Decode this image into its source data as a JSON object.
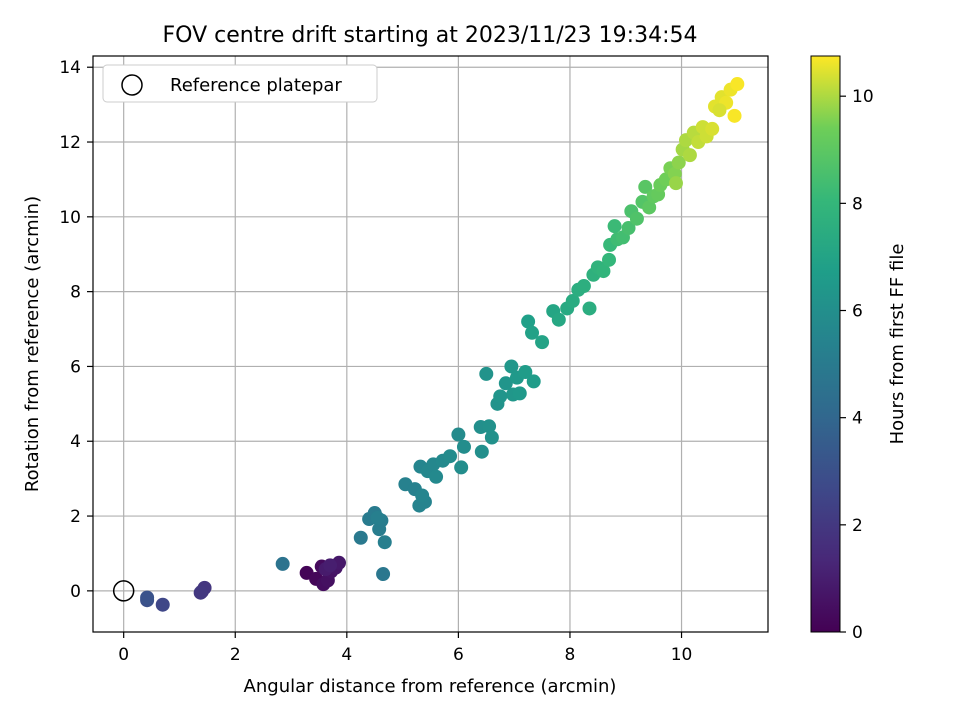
{
  "chart_data": {
    "type": "scatter",
    "title": "FOV centre drift starting at 2023/11/23 19:34:54",
    "xlabel": "Angular distance from reference (arcmin)",
    "ylabel": "Rotation from reference (arcmin)",
    "xlim": [
      -0.55,
      11.55
    ],
    "ylim": [
      -1.1,
      14.3
    ],
    "xticks": [
      0,
      2,
      4,
      6,
      8,
      10
    ],
    "yticks": [
      0,
      2,
      4,
      6,
      8,
      10,
      12,
      14
    ],
    "grid": true,
    "legend": {
      "location": "upper-left",
      "entries": [
        {
          "label": "Reference platepar",
          "marker": "open-circle"
        }
      ]
    },
    "reference_point": {
      "x": 0,
      "y": 0
    },
    "colorbar": {
      "label": "Hours from first FF file",
      "range": [
        0,
        10.75
      ],
      "ticks": [
        0,
        2,
        4,
        6,
        8,
        10
      ],
      "colormap": "viridis"
    },
    "series": [
      {
        "points": [
          [
            3.28,
            0.48,
            0.1
          ],
          [
            3.45,
            0.32,
            0.2
          ],
          [
            3.55,
            0.65,
            0.3
          ],
          [
            3.58,
            0.18,
            0.4
          ],
          [
            3.66,
            0.28,
            0.5
          ],
          [
            3.72,
            0.52,
            0.6
          ],
          [
            3.8,
            0.62,
            0.7
          ],
          [
            3.86,
            0.75,
            0.8
          ],
          [
            3.62,
            0.58,
            0.9
          ],
          [
            3.7,
            0.68,
            1.0
          ],
          [
            1.4,
            -0.02,
            1.8
          ],
          [
            1.45,
            0.08,
            1.9
          ],
          [
            1.38,
            -0.05,
            2.0
          ],
          [
            0.7,
            -0.37,
            2.6
          ],
          [
            0.42,
            -0.25,
            3.0
          ],
          [
            0.42,
            -0.18,
            3.1
          ],
          [
            2.85,
            0.72,
            4.6
          ],
          [
            4.65,
            0.45,
            4.8
          ],
          [
            4.25,
            1.42,
            4.9
          ],
          [
            4.4,
            1.92,
            5.0
          ],
          [
            4.5,
            2.08,
            5.0
          ],
          [
            4.58,
            1.65,
            5.1
          ],
          [
            4.62,
            1.88,
            5.1
          ],
          [
            4.68,
            1.3,
            5.2
          ],
          [
            4.55,
            1.95,
            5.2
          ],
          [
            5.05,
            2.85,
            5.3
          ],
          [
            5.22,
            2.72,
            5.3
          ],
          [
            5.3,
            2.28,
            5.4
          ],
          [
            5.4,
            2.38,
            5.4
          ],
          [
            5.35,
            2.55,
            5.5
          ],
          [
            5.32,
            3.32,
            5.5
          ],
          [
            5.45,
            3.2,
            5.6
          ],
          [
            5.55,
            3.38,
            5.6
          ],
          [
            5.6,
            3.05,
            5.7
          ],
          [
            5.72,
            3.48,
            5.7
          ],
          [
            5.85,
            3.6,
            5.8
          ],
          [
            6.0,
            4.18,
            5.8
          ],
          [
            6.1,
            3.85,
            5.9
          ],
          [
            6.05,
            3.3,
            5.9
          ],
          [
            6.42,
            3.72,
            6.0
          ],
          [
            6.4,
            4.38,
            6.0
          ],
          [
            6.55,
            4.4,
            6.1
          ],
          [
            6.6,
            4.1,
            6.1
          ],
          [
            6.5,
            5.8,
            6.2
          ],
          [
            6.7,
            5.0,
            6.2
          ],
          [
            6.75,
            5.2,
            6.3
          ],
          [
            6.85,
            5.55,
            6.3
          ],
          [
            6.95,
            6.0,
            6.4
          ],
          [
            6.98,
            5.25,
            6.4
          ],
          [
            7.05,
            5.7,
            6.5
          ],
          [
            7.1,
            5.28,
            6.5
          ],
          [
            7.2,
            5.85,
            6.6
          ],
          [
            7.35,
            5.6,
            6.6
          ],
          [
            7.25,
            7.2,
            6.8
          ],
          [
            7.32,
            6.9,
            6.9
          ],
          [
            7.5,
            6.65,
            7.0
          ],
          [
            7.7,
            7.48,
            7.1
          ],
          [
            7.8,
            7.25,
            7.2
          ],
          [
            7.95,
            7.55,
            7.3
          ],
          [
            8.05,
            7.75,
            7.4
          ],
          [
            8.15,
            8.05,
            7.5
          ],
          [
            8.35,
            7.55,
            7.5
          ],
          [
            8.25,
            8.15,
            7.6
          ],
          [
            8.42,
            8.45,
            7.7
          ],
          [
            8.5,
            8.65,
            7.8
          ],
          [
            8.6,
            8.55,
            7.9
          ],
          [
            8.7,
            8.85,
            8.0
          ],
          [
            8.72,
            9.25,
            8.1
          ],
          [
            8.8,
            9.75,
            8.2
          ],
          [
            8.85,
            9.4,
            8.3
          ],
          [
            8.95,
            9.45,
            8.4
          ],
          [
            9.05,
            9.7,
            8.5
          ],
          [
            9.1,
            10.15,
            8.6
          ],
          [
            9.2,
            9.95,
            8.7
          ],
          [
            9.3,
            10.4,
            8.8
          ],
          [
            9.35,
            10.8,
            8.9
          ],
          [
            9.42,
            10.25,
            9.0
          ],
          [
            9.5,
            10.55,
            9.1
          ],
          [
            9.58,
            10.6,
            9.2
          ],
          [
            9.62,
            10.85,
            9.3
          ],
          [
            9.72,
            11.0,
            9.4
          ],
          [
            9.8,
            11.3,
            9.5
          ],
          [
            9.88,
            11.15,
            9.6
          ],
          [
            9.95,
            11.45,
            9.7
          ],
          [
            9.9,
            10.9,
            9.8
          ],
          [
            10.02,
            11.8,
            9.9
          ],
          [
            10.08,
            12.05,
            10.0
          ],
          [
            10.15,
            11.65,
            10.0
          ],
          [
            10.22,
            12.25,
            10.1
          ],
          [
            10.3,
            12.0,
            10.2
          ],
          [
            10.38,
            12.4,
            10.3
          ],
          [
            10.45,
            12.15,
            10.3
          ],
          [
            10.55,
            12.35,
            10.4
          ],
          [
            10.6,
            12.95,
            10.5
          ],
          [
            10.72,
            13.2,
            10.5
          ],
          [
            10.8,
            13.05,
            10.6
          ],
          [
            10.88,
            13.4,
            10.6
          ],
          [
            10.95,
            12.7,
            10.7
          ],
          [
            11.0,
            13.55,
            10.7
          ],
          [
            10.68,
            12.85,
            10.4
          ]
        ]
      }
    ]
  }
}
